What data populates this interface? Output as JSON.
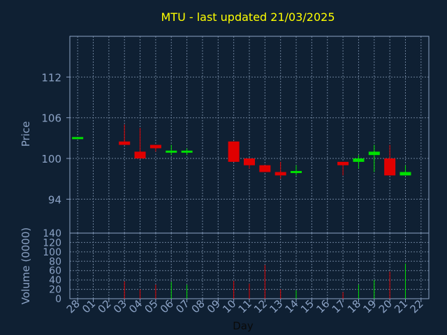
{
  "chart_data": {
    "type": "candlestick",
    "title": "MTU - last updated 21/03/2025",
    "price_axis": {
      "label": "Price",
      "ylim": [
        89,
        118
      ],
      "ticks": [
        94,
        100,
        106,
        112
      ]
    },
    "volume_axis": {
      "label": "Volume (0000)",
      "ylim": [
        0,
        140
      ],
      "ticks": [
        0,
        20,
        40,
        60,
        80,
        100,
        120,
        140
      ]
    },
    "x_axis": {
      "label": "Day",
      "categories": [
        "28",
        "01",
        "02",
        "03",
        "04",
        "05",
        "06",
        "07",
        "08",
        "09",
        "10",
        "11",
        "12",
        "13",
        "14",
        "15",
        "16",
        "17",
        "18",
        "19",
        "20",
        "21",
        "22"
      ]
    },
    "grid": true,
    "candles": [
      {
        "day": "28",
        "open": 103,
        "close": 103,
        "high": 103,
        "low": 103,
        "volume": 0
      },
      {
        "day": "03",
        "open": 102.5,
        "close": 102,
        "high": 105,
        "low": 102,
        "volume": 37
      },
      {
        "day": "04",
        "open": 101,
        "close": 100,
        "high": 104.5,
        "low": 100,
        "volume": 20
      },
      {
        "day": "05",
        "open": 102,
        "close": 101.5,
        "high": 102,
        "low": 101,
        "volume": 30
      },
      {
        "day": "06",
        "open": 101,
        "close": 101,
        "high": 102,
        "low": 100.5,
        "volume": 36
      },
      {
        "day": "07",
        "open": 101,
        "close": 101,
        "high": 101.5,
        "low": 100.5,
        "volume": 30
      },
      {
        "day": "10",
        "open": 102.5,
        "close": 99.5,
        "high": 102.5,
        "low": 99.5,
        "volume": 38
      },
      {
        "day": "11",
        "open": 100,
        "close": 99,
        "high": 100,
        "low": 98.5,
        "volume": 32
      },
      {
        "day": "12",
        "open": 99,
        "close": 98,
        "high": 99,
        "low": 98,
        "volume": 72
      },
      {
        "day": "13",
        "open": 98,
        "close": 97.5,
        "high": 99.5,
        "low": 97,
        "volume": 20
      },
      {
        "day": "14",
        "open": 98,
        "close": 98,
        "high": 99,
        "low": 97.5,
        "volume": 18
      },
      {
        "day": "17",
        "open": 99.5,
        "close": 99,
        "high": 99.5,
        "low": 97.5,
        "volume": 14
      },
      {
        "day": "18",
        "open": 99.5,
        "close": 100,
        "high": 100.5,
        "low": 98.5,
        "volume": 30
      },
      {
        "day": "19",
        "open": 100.5,
        "close": 101,
        "high": 102,
        "low": 98,
        "volume": 40
      },
      {
        "day": "20",
        "open": 100,
        "close": 97.5,
        "high": 102,
        "low": 97.5,
        "volume": 58
      },
      {
        "day": "21",
        "open": 97.5,
        "close": 98,
        "high": 99,
        "low": 97.5,
        "volume": 75
      }
    ],
    "colors": {
      "background": "#0f2033",
      "up": "#00e000",
      "down": "#e00000",
      "axis_text": "#8ca3c6",
      "title": "#ffff00",
      "grid": "#6b7f99"
    }
  }
}
